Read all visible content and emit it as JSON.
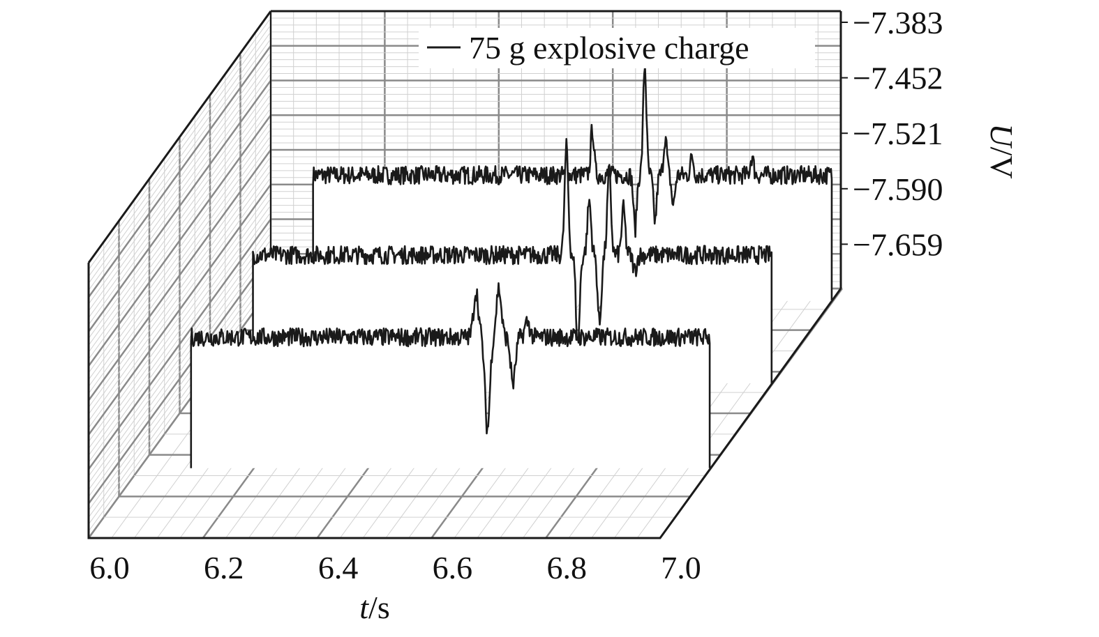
{
  "chart_data": {
    "type": "line",
    "variant": "3d-waterfall",
    "title": "",
    "xlabel_italic": "t",
    "xlabel_unit": "/s",
    "ylabel_italic": "U",
    "ylabel_unit": "/V",
    "x_ticks": [
      "6.0",
      "6.2",
      "6.4",
      "6.6",
      "6.8",
      "7.0"
    ],
    "xlim": [
      6.0,
      7.0
    ],
    "y_ticks": [
      "−7.383",
      "−7.452",
      "−7.521",
      "−7.590",
      "−7.659"
    ],
    "y_tick_values": [
      -7.383,
      -7.452,
      -7.521,
      -7.59,
      -7.659
    ],
    "legend": {
      "entries": [
        "75 g explosive charge"
      ],
      "placement": "top-right"
    },
    "grid": true,
    "series": [
      {
        "baseline": -7.56,
        "noise": 0.006,
        "events": [
          {
            "t": 6.59,
            "dv": 0.03,
            "w": 0.006
          },
          {
            "t": 6.61,
            "dv": -0.06,
            "w": 0.006
          },
          {
            "t": 6.63,
            "dv": 0.032,
            "w": 0.006
          },
          {
            "t": 6.655,
            "dv": -0.03,
            "w": 0.006
          },
          {
            "t": 6.68,
            "dv": 0.01,
            "w": 0.006
          }
        ]
      },
      {
        "baseline": -7.56,
        "noise": 0.006,
        "events": [
          {
            "t": 6.64,
            "dv": 0.07,
            "w": 0.0045
          },
          {
            "t": 6.66,
            "dv": -0.06,
            "w": 0.0045
          },
          {
            "t": 6.68,
            "dv": 0.035,
            "w": 0.0045
          },
          {
            "t": 6.698,
            "dv": -0.045,
            "w": 0.0045
          },
          {
            "t": 6.715,
            "dv": 0.055,
            "w": 0.0045
          },
          {
            "t": 6.74,
            "dv": 0.03,
            "w": 0.0045
          },
          {
            "t": 6.76,
            "dv": -0.01,
            "w": 0.0045
          }
        ]
      },
      {
        "baseline": -7.56,
        "noise": 0.006,
        "events": [
          {
            "t": 6.58,
            "dv": 0.03,
            "w": 0.004
          },
          {
            "t": 6.655,
            "dv": -0.035,
            "w": 0.004
          },
          {
            "t": 6.672,
            "dv": 0.072,
            "w": 0.004
          },
          {
            "t": 6.69,
            "dv": -0.03,
            "w": 0.004
          },
          {
            "t": 6.708,
            "dv": 0.025,
            "w": 0.004
          },
          {
            "t": 6.722,
            "dv": -0.02,
            "w": 0.004
          },
          {
            "t": 6.755,
            "dv": 0.012,
            "w": 0.004
          },
          {
            "t": 6.86,
            "dv": 0.012,
            "w": 0.004
          }
        ]
      }
    ]
  }
}
